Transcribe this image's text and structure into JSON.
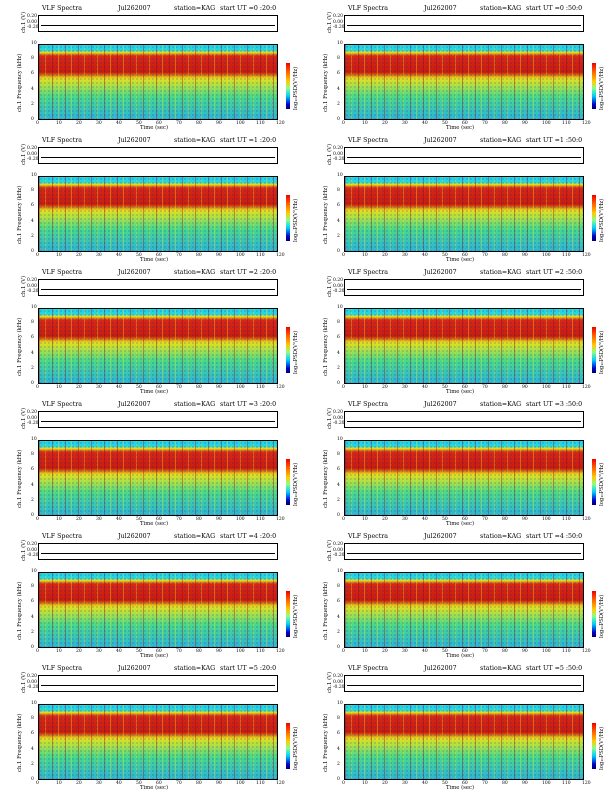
{
  "page": {
    "rows": 6,
    "cols": 2
  },
  "panels": [
    {
      "title": "VLF Spectra",
      "date": "Jul262007",
      "station": "station=KAG",
      "start": "start  UT =0 :20:0"
    },
    {
      "title": "VLF Spectra",
      "date": "Jul262007",
      "station": "station=KAG",
      "start": "start  UT =0 :50:0"
    },
    {
      "title": "VLF Spectra",
      "date": "Jul262007",
      "station": "station=KAG",
      "start": "start  UT =1 :20:0"
    },
    {
      "title": "VLF Spectra",
      "date": "Jul262007",
      "station": "station=KAG",
      "start": "start  UT =1 :50:0"
    },
    {
      "title": "VLF Spectra",
      "date": "Jul262007",
      "station": "station=KAG",
      "start": "start  UT =2 :20:0"
    },
    {
      "title": "VLF Spectra",
      "date": "Jul262007",
      "station": "station=KAG",
      "start": "start  UT =2 :50:0"
    },
    {
      "title": "VLF Spectra",
      "date": "Jul262007",
      "station": "station=KAG",
      "start": "start  UT =3 :20:0"
    },
    {
      "title": "VLF Spectra",
      "date": "Jul262007",
      "station": "station=KAG",
      "start": "start  UT =3 :50:0"
    },
    {
      "title": "VLF Spectra",
      "date": "Jul262007",
      "station": "station=KAG",
      "start": "start  UT =4 :20:0"
    },
    {
      "title": "VLF Spectra",
      "date": "Jul262007",
      "station": "station=KAG",
      "start": "start  UT =4 :50:0"
    },
    {
      "title": "VLF Spectra",
      "date": "Jul262007",
      "station": "station=KAG",
      "start": "start  UT =5 :20:0"
    },
    {
      "title": "VLF Spectra",
      "date": "Jul262007",
      "station": "station=KAG",
      "start": "start  UT =5 :50:0"
    }
  ],
  "chart_data": {
    "type": "heatmap",
    "subplot_count": 12,
    "xlabel": "Time (sec)",
    "ylabel": "ch.1 Frequency (kHz)",
    "trace_ylabel": "ch.1 (V)",
    "colorbar_label": "log₁₀PSD(V²/Hz)",
    "xlim": [
      0,
      120
    ],
    "ylim": [
      0,
      10
    ],
    "trace_ylim": [
      -0.2,
      0.2
    ],
    "x_ticks": [
      0,
      10,
      20,
      30,
      40,
      50,
      60,
      70,
      80,
      90,
      100,
      110,
      120
    ],
    "y_ticks": [
      0,
      2,
      4,
      6,
      8,
      10
    ],
    "trace_ticks": [
      "0.20",
      "0.00",
      "-0.20"
    ],
    "colormap": [
      "#000066",
      "#0000cc",
      "#00ccff",
      "#88ff88",
      "#ffcc00",
      "#ff6600",
      "#e00000"
    ],
    "description": "Broadband VLF spectrograms; strongest power (red) concentrated roughly 5-9 kHz with vertical impulsive spikes across 0-120 s; cutoff near 9.5 kHz."
  }
}
